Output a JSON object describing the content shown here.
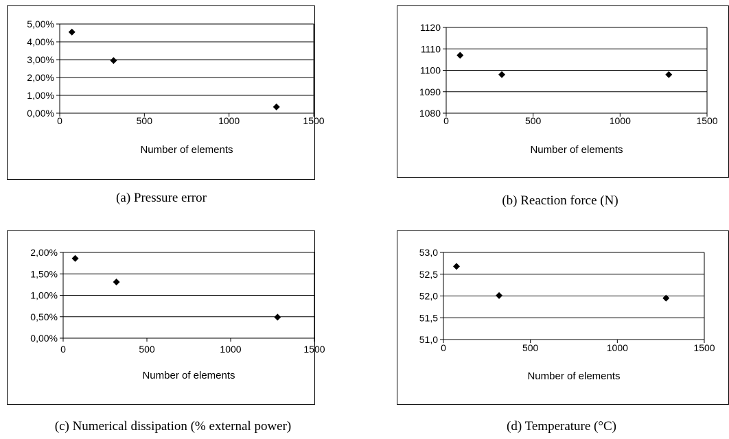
{
  "chart_data": [
    {
      "id": "a",
      "type": "scatter",
      "caption": "(a) Pressure error",
      "xlabel": "Number of elements",
      "ylabel": "",
      "xlim": [
        0,
        1500
      ],
      "ylim": [
        0,
        5
      ],
      "xticks": [
        0,
        500,
        1000,
        1500
      ],
      "yticks": [
        0,
        1,
        2,
        3,
        4,
        5
      ],
      "ytick_labels": [
        "0,00%",
        "1,00%",
        "2,00%",
        "3,00%",
        "4,00%",
        "5,00%"
      ],
      "grid": "horizontal",
      "marker": "diamond",
      "x": [
        72,
        318,
        1280
      ],
      "y": [
        4.55,
        2.95,
        0.35
      ]
    },
    {
      "id": "b",
      "type": "scatter",
      "caption": "(b) Reaction force (N)",
      "xlabel": "Number of elements",
      "ylabel": "",
      "xlim": [
        0,
        1500
      ],
      "ylim": [
        1080,
        1120
      ],
      "xticks": [
        0,
        500,
        1000,
        1500
      ],
      "yticks": [
        1080,
        1090,
        1100,
        1110,
        1120
      ],
      "ytick_labels": [
        "1080",
        "1090",
        "1100",
        "1110",
        "1120"
      ],
      "grid": "horizontal",
      "marker": "diamond",
      "x": [
        80,
        320,
        1280
      ],
      "y": [
        1107,
        1098,
        1098
      ]
    },
    {
      "id": "c",
      "type": "scatter",
      "caption": "(c) Numerical dissipation (% external power)",
      "xlabel": "Number of elements",
      "ylabel": "",
      "xlim": [
        0,
        1500
      ],
      "ylim": [
        0,
        2
      ],
      "xticks": [
        0,
        500,
        1000,
        1500
      ],
      "yticks": [
        0,
        0.5,
        1,
        1.5,
        2
      ],
      "ytick_labels": [
        "0,00%",
        "0,50%",
        "1,00%",
        "1,50%",
        "2,00%"
      ],
      "grid": "horizontal",
      "marker": "diamond",
      "x": [
        72,
        318,
        1280
      ],
      "y": [
        1.86,
        1.31,
        0.49
      ]
    },
    {
      "id": "d",
      "type": "scatter",
      "caption": "(d) Temperature (°C)",
      "xlabel": "Number of elements",
      "ylabel": "",
      "xlim": [
        0,
        1500
      ],
      "ylim": [
        51,
        53
      ],
      "xticks": [
        0,
        500,
        1000,
        1500
      ],
      "yticks": [
        51,
        51.5,
        52,
        52.5,
        53
      ],
      "ytick_labels": [
        "51,0",
        "51,5",
        "52,0",
        "52,5",
        "53,0"
      ],
      "grid": "horizontal",
      "marker": "diamond",
      "x": [
        75,
        320,
        1280
      ],
      "y": [
        52.68,
        52.01,
        51.95
      ]
    }
  ]
}
